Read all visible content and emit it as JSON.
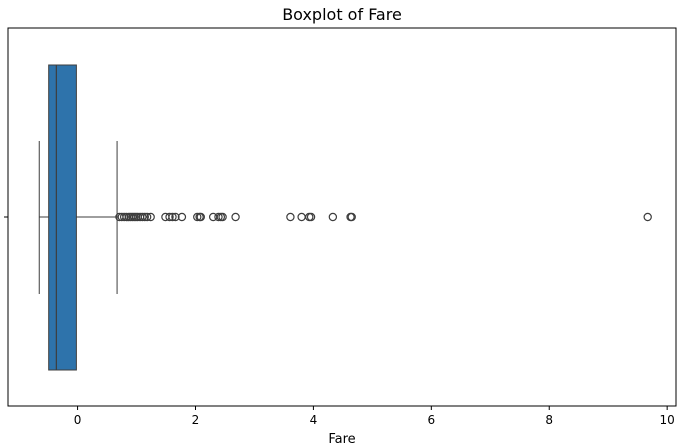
{
  "chart_data": {
    "type": "boxplot",
    "title": "Boxplot of Fare",
    "xlabel": "Fare",
    "ylabel": "",
    "orientation": "horizontal",
    "xlim": [
      -1.18,
      10.15
    ],
    "xticks": [
      0,
      2,
      4,
      6,
      8,
      10
    ],
    "xtick_labels": [
      "0",
      "2",
      "4",
      "6",
      "8",
      "10"
    ],
    "grid": false,
    "box": {
      "whisker_low": -0.65,
      "q1": -0.49,
      "median": -0.36,
      "q3": -0.02,
      "whisker_high": 0.67,
      "color": "#2e73ab",
      "edge_color": "#3d3d3d"
    },
    "outliers": [
      0.71,
      0.75,
      0.79,
      0.83,
      0.87,
      0.9,
      0.93,
      0.96,
      0.99,
      1.02,
      1.06,
      1.1,
      1.14,
      1.18,
      1.24,
      1.49,
      1.56,
      1.61,
      1.66,
      1.77,
      2.03,
      2.07,
      2.09,
      2.3,
      2.39,
      2.43,
      2.46,
      2.68,
      3.61,
      3.8,
      3.93,
      3.96,
      4.33,
      4.63,
      4.65,
      9.67
    ]
  }
}
